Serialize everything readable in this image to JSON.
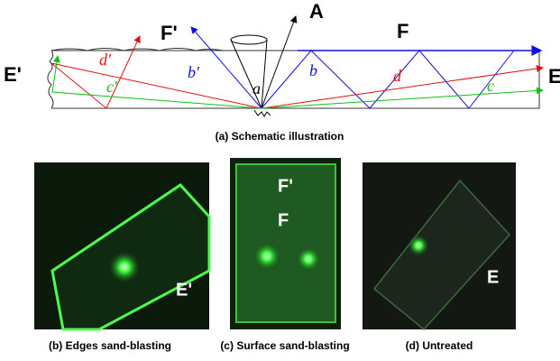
{
  "schematic": {
    "labels": [
      "A",
      "F",
      "F'",
      "E'",
      "E",
      "a",
      "b",
      "b'",
      "c",
      "c'",
      "d",
      "d'"
    ],
    "caption": "(a) Schematic illustration"
  },
  "photos": [
    {
      "labels": [
        "E'"
      ],
      "caption": "(b) Edges sand-blasting"
    },
    {
      "labels": [
        "F'",
        "F"
      ],
      "caption": "(c) Surface sand-blasting"
    },
    {
      "labels": [
        "E"
      ],
      "caption": "(d) Untreated"
    }
  ]
}
